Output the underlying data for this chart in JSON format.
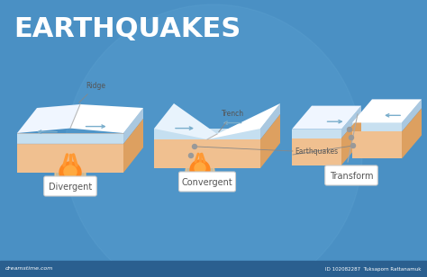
{
  "title": "EARTHQUAKES",
  "bg_color": "#4A90C4",
  "title_color": "#FFFFFF",
  "title_fontsize": 22,
  "top_white": "#FFFFFF",
  "top_white2": "#EEF5FF",
  "top_shadow": "#D8EAF5",
  "water_color": "#B8D8EE",
  "sand_front": "#F0C090",
  "sand_top": "#F5CEAA",
  "sand_side": "#E8AC70",
  "magma_outer": "#FF8020",
  "magma_inner": "#FFAA40",
  "arrow_color": "#7AAECC",
  "eq_dot_color": "#888888",
  "label_bg": "#FFFFFF",
  "label_text": "#555555",
  "footer_bg": "#2A5F8F",
  "footer_text1": "dreamstime.com",
  "footer_text2": "ID 102082287  Tuksaporn Rattanamuk",
  "sublabels": [
    "Divergent",
    "Convergent",
    "Transform"
  ],
  "annot_ridge": "Ridge",
  "annot_trench": "Trench",
  "annot_eq": "Earthquakes"
}
